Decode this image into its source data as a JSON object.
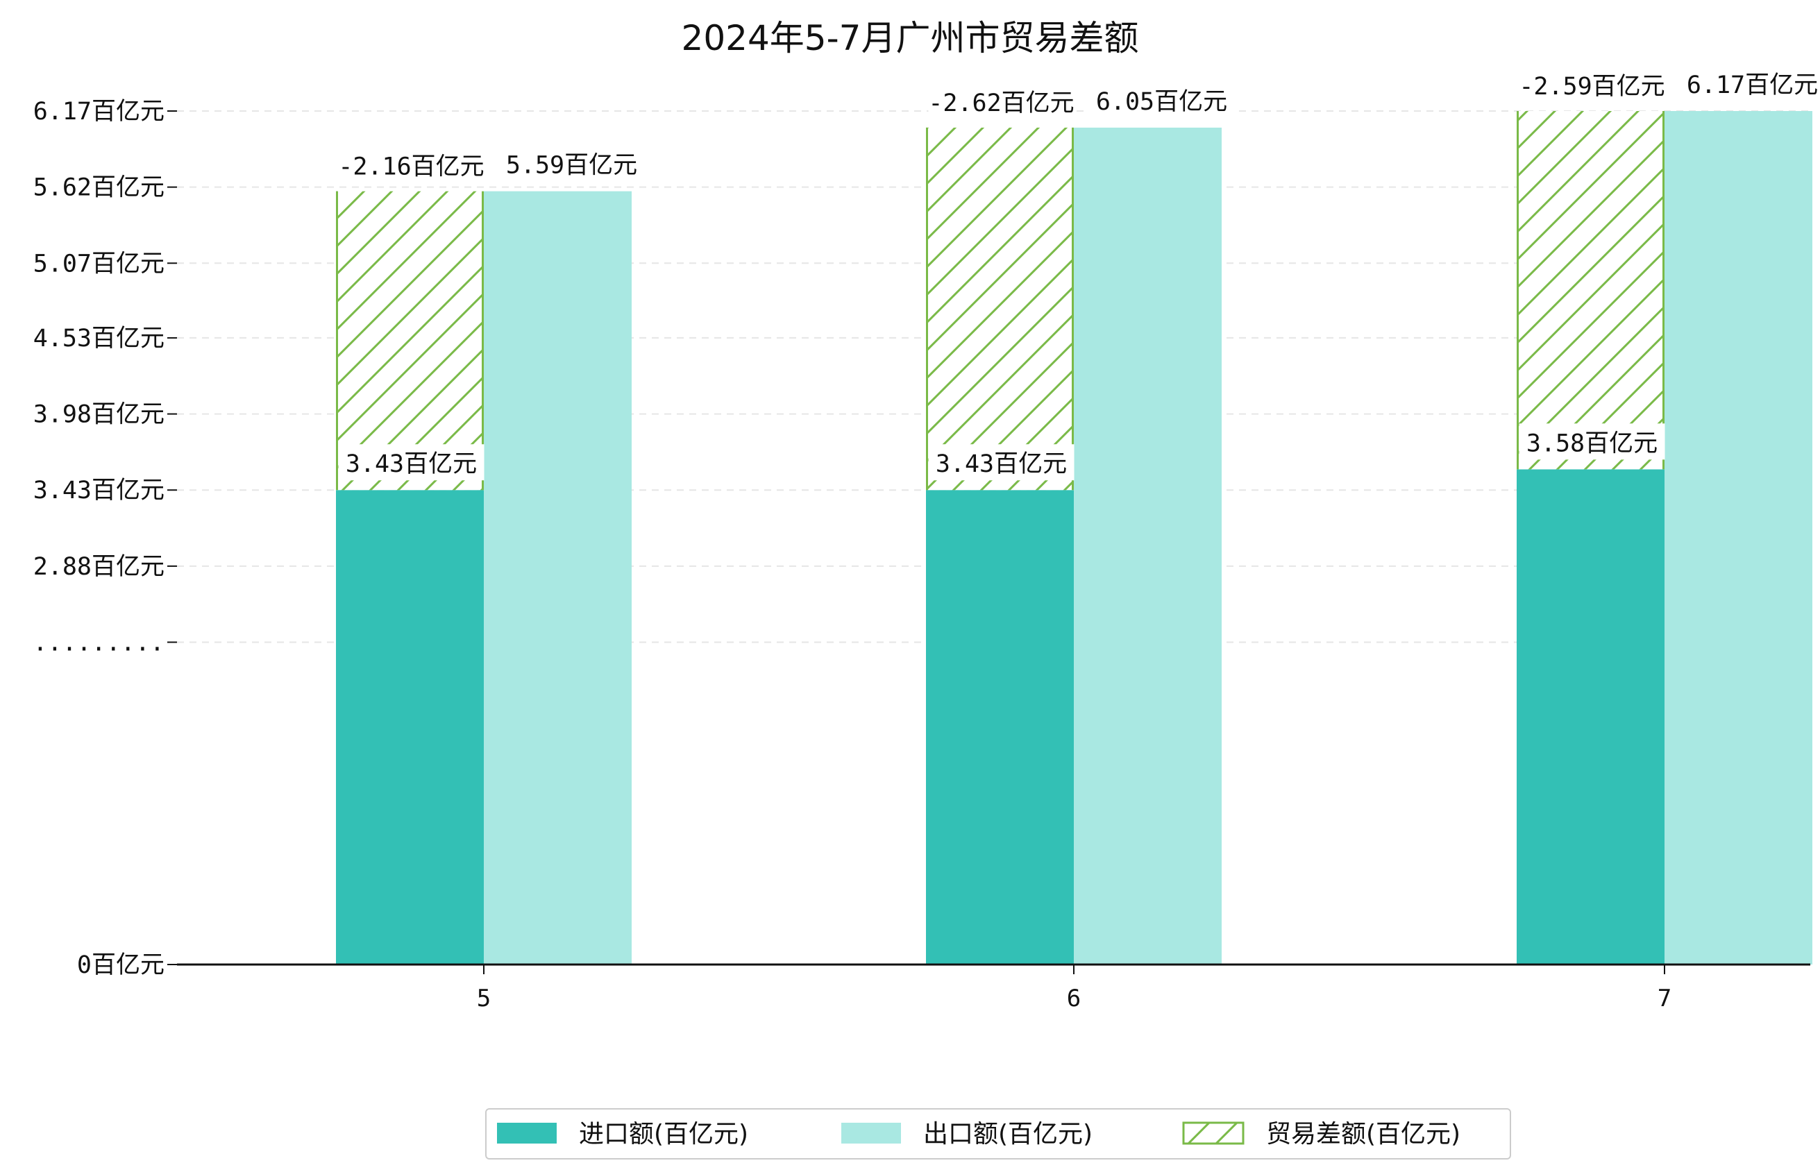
{
  "chart_data": {
    "type": "bar",
    "title": "2024年5-7月广州市贸易差额",
    "categories": [
      "5",
      "6",
      "7"
    ],
    "series": [
      {
        "name": "进口额(百亿元)",
        "values": [
          3.43,
          3.43,
          3.58
        ],
        "labels": [
          "3.43百亿元",
          "3.43百亿元",
          "3.58百亿元"
        ]
      },
      {
        "name": "出口额(百亿元)",
        "values": [
          5.59,
          6.05,
          6.17
        ],
        "labels": [
          "5.59百亿元",
          "6.05百亿元",
          "6.17百亿元"
        ]
      },
      {
        "name": "贸易差额(百亿元)",
        "values": [
          -2.16,
          -2.62,
          -2.59
        ],
        "labels": [
          "-2.16百亿元",
          "-2.62百亿元",
          "-2.59百亿元"
        ]
      }
    ],
    "yticks": [
      {
        "value": 0,
        "label": "0百亿元"
      },
      {
        "value": 2.33,
        "label": "........."
      },
      {
        "value": 2.88,
        "label": "2.88百亿元"
      },
      {
        "value": 3.43,
        "label": "3.43百亿元"
      },
      {
        "value": 3.98,
        "label": "3.98百亿元"
      },
      {
        "value": 4.53,
        "label": "4.53百亿元"
      },
      {
        "value": 5.07,
        "label": "5.07百亿元"
      },
      {
        "value": 5.62,
        "label": "5.62百亿元"
      },
      {
        "value": 6.17,
        "label": "6.17百亿元"
      }
    ],
    "ylim": [
      0,
      6.17
    ],
    "grid": "horizontal-dashed",
    "legend_position": "bottom",
    "colors": {
      "import": "#33c0b5",
      "export": "#a9e8e2",
      "balance": "#7aba48"
    }
  }
}
